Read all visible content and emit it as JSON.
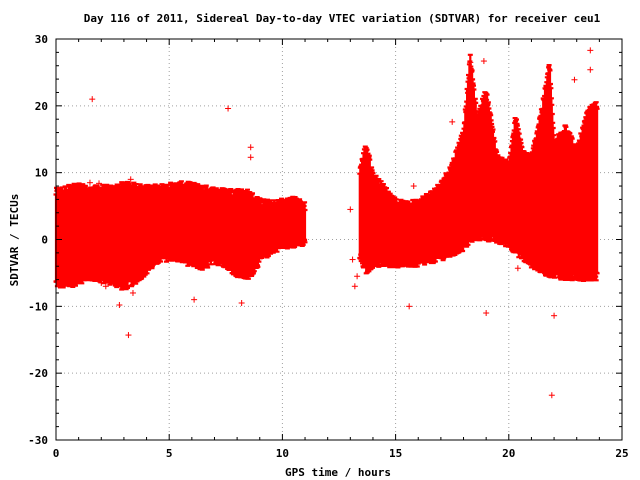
{
  "chart_data": {
    "type": "scatter",
    "title": "Day 116 of 2011, Sidereal Day-to-day VTEC variation (SDTVAR) for receiver ceu1",
    "xlabel": "GPS time / hours",
    "ylabel": "SDTVAR / TECUs",
    "xlim": [
      0,
      25
    ],
    "ylim": [
      -30,
      30
    ],
    "xticks": [
      "0",
      "5",
      "10",
      "15",
      "20",
      "25"
    ],
    "yticks": [
      "30",
      "20",
      "10",
      "0",
      "-10",
      "-20",
      "-30"
    ],
    "grid": true,
    "legend": "none",
    "marker": "plus",
    "color": "#ff0000",
    "series": [
      {
        "envelope": [
          [
            0.0,
            -6.5,
            7.0
          ],
          [
            0.5,
            -6.8,
            7.5
          ],
          [
            1.0,
            -6.0,
            7.8
          ],
          [
            1.5,
            -5.5,
            7.2
          ],
          [
            2.0,
            -5.8,
            7.6
          ],
          [
            2.5,
            -6.2,
            7.4
          ],
          [
            3.0,
            -7.0,
            8.0
          ],
          [
            3.5,
            -6.0,
            7.8
          ],
          [
            4.0,
            -4.5,
            7.5
          ],
          [
            4.5,
            -3.0,
            7.6
          ],
          [
            5.0,
            -2.5,
            7.8
          ],
          [
            5.5,
            -2.8,
            8.0
          ],
          [
            6.0,
            -3.5,
            7.9
          ],
          [
            6.5,
            -4.0,
            7.5
          ],
          [
            7.0,
            -3.0,
            7.2
          ],
          [
            7.5,
            -3.5,
            7.0
          ],
          [
            8.0,
            -5.0,
            7.0
          ],
          [
            8.5,
            -5.5,
            6.8
          ],
          [
            9.0,
            -3.0,
            5.5
          ],
          [
            9.5,
            -1.5,
            5.2
          ],
          [
            10.0,
            -0.8,
            5.5
          ],
          [
            10.5,
            -0.5,
            5.8
          ],
          [
            11.0,
            -0.5,
            5.0
          ],
          [
            13.4,
            -2.5,
            10.0
          ],
          [
            13.7,
            -4.5,
            14.0
          ],
          [
            14.0,
            -3.5,
            9.5
          ],
          [
            14.5,
            -3.5,
            7.5
          ],
          [
            15.0,
            -3.5,
            5.5
          ],
          [
            15.5,
            -3.5,
            5.0
          ],
          [
            16.0,
            -3.5,
            5.5
          ],
          [
            16.5,
            -3.0,
            6.5
          ],
          [
            17.0,
            -2.5,
            8.0
          ],
          [
            17.5,
            -2.0,
            11.0
          ],
          [
            18.0,
            -1.0,
            16.0
          ],
          [
            18.3,
            0.0,
            27.0
          ],
          [
            18.6,
            0.5,
            18.0
          ],
          [
            19.0,
            0.5,
            22.0
          ],
          [
            19.5,
            0.0,
            12.0
          ],
          [
            20.0,
            -0.5,
            11.0
          ],
          [
            20.3,
            -1.5,
            18.0
          ],
          [
            20.6,
            -2.5,
            13.0
          ],
          [
            21.0,
            -3.5,
            12.0
          ],
          [
            21.5,
            -4.5,
            20.0
          ],
          [
            21.8,
            -5.0,
            26.0
          ],
          [
            22.0,
            -5.0,
            14.0
          ],
          [
            22.5,
            -5.5,
            17.0
          ],
          [
            23.0,
            -5.5,
            13.0
          ],
          [
            23.5,
            -5.5,
            19.0
          ],
          [
            23.9,
            -5.5,
            20.0
          ]
        ],
        "outliers": [
          [
            1.6,
            21.0
          ],
          [
            1.5,
            8.5
          ],
          [
            1.9,
            8.4
          ],
          [
            2.0,
            -6.5
          ],
          [
            2.2,
            -7.0
          ],
          [
            2.8,
            -9.8
          ],
          [
            3.2,
            -14.3
          ],
          [
            3.3,
            9.0
          ],
          [
            3.4,
            -8.0
          ],
          [
            6.1,
            -9.0
          ],
          [
            7.6,
            19.6
          ],
          [
            8.2,
            -9.5
          ],
          [
            8.6,
            13.8
          ],
          [
            8.6,
            12.3
          ],
          [
            13.0,
            4.5
          ],
          [
            13.1,
            -3.0
          ],
          [
            13.3,
            -5.5
          ],
          [
            13.2,
            -7.0
          ],
          [
            15.8,
            8.0
          ],
          [
            15.6,
            -10.0
          ],
          [
            17.5,
            17.6
          ],
          [
            18.3,
            26.5
          ],
          [
            18.9,
            26.7
          ],
          [
            19.0,
            -11.0
          ],
          [
            20.4,
            -4.3
          ],
          [
            22.0,
            -11.4
          ],
          [
            21.9,
            -23.3
          ],
          [
            22.9,
            23.9
          ],
          [
            23.6,
            28.3
          ],
          [
            23.6,
            25.4
          ]
        ]
      }
    ]
  }
}
